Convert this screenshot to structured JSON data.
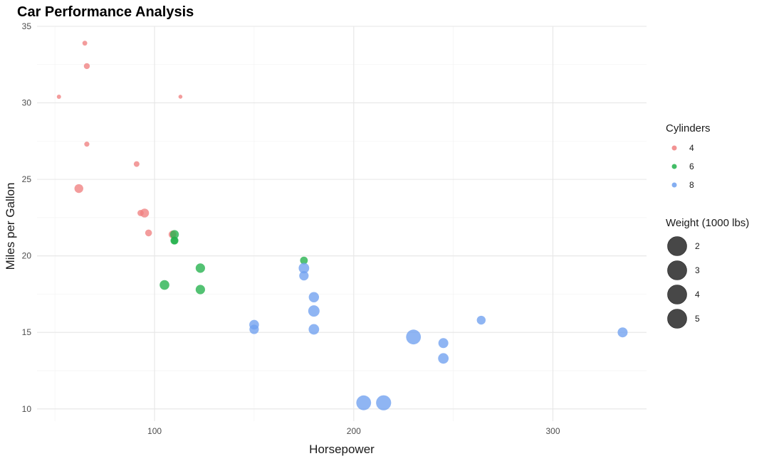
{
  "chart_data": {
    "type": "scatter",
    "title": "Car Performance Analysis",
    "xlabel": "Horsepower",
    "ylabel": "Miles per Gallon",
    "xlim": [
      41,
      347
    ],
    "ylim": [
      9.2,
      35
    ],
    "x_ticks": [
      100,
      200,
      300
    ],
    "y_ticks": [
      10,
      15,
      20,
      25,
      30,
      35
    ],
    "grid": true,
    "legend_position": "right",
    "colors": {
      "4": "#f08080",
      "6": "#22b14c",
      "8": "#6fa0ef"
    },
    "color_legend": {
      "title": "Cylinders",
      "entries": [
        {
          "label": "4",
          "color": "#f08080"
        },
        {
          "label": "6",
          "color": "#22b14c"
        },
        {
          "label": "8",
          "color": "#6fa0ef"
        }
      ]
    },
    "size_legend": {
      "title": "Weight (1000 lbs)",
      "entries": [
        "2",
        "3",
        "4",
        "5"
      ],
      "color": "#333333"
    },
    "series": [
      {
        "name": "4",
        "points": [
          {
            "hp": 65,
            "mpg": 33.9,
            "wt": 1.8
          },
          {
            "hp": 66,
            "mpg": 32.4,
            "wt": 2.2
          },
          {
            "hp": 52,
            "mpg": 30.4,
            "wt": 1.6
          },
          {
            "hp": 113,
            "mpg": 30.4,
            "wt": 1.5
          },
          {
            "hp": 66,
            "mpg": 27.3,
            "wt": 1.9
          },
          {
            "hp": 91,
            "mpg": 26.0,
            "wt": 2.1
          },
          {
            "hp": 62,
            "mpg": 24.4,
            "wt": 3.2
          },
          {
            "hp": 93,
            "mpg": 22.8,
            "wt": 2.3
          },
          {
            "hp": 95,
            "mpg": 22.8,
            "wt": 3.2
          },
          {
            "hp": 97,
            "mpg": 21.5,
            "wt": 2.5
          },
          {
            "hp": 109,
            "mpg": 21.4,
            "wt": 2.8
          }
        ]
      },
      {
        "name": "6",
        "points": [
          {
            "hp": 110,
            "mpg": 21.4,
            "wt": 3.2
          },
          {
            "hp": 110,
            "mpg": 21.0,
            "wt": 2.6
          },
          {
            "hp": 110,
            "mpg": 21.0,
            "wt": 2.9
          },
          {
            "hp": 105,
            "mpg": 18.1,
            "wt": 3.5
          },
          {
            "hp": 123,
            "mpg": 19.2,
            "wt": 3.4
          },
          {
            "hp": 123,
            "mpg": 17.8,
            "wt": 3.4
          },
          {
            "hp": 175,
            "mpg": 19.7,
            "wt": 2.8
          }
        ]
      },
      {
        "name": "8",
        "points": [
          {
            "hp": 175,
            "mpg": 19.2,
            "wt": 3.8
          },
          {
            "hp": 175,
            "mpg": 18.7,
            "wt": 3.4
          },
          {
            "hp": 180,
            "mpg": 17.3,
            "wt": 3.7
          },
          {
            "hp": 180,
            "mpg": 16.4,
            "wt": 4.1
          },
          {
            "hp": 180,
            "mpg": 15.2,
            "wt": 3.8
          },
          {
            "hp": 150,
            "mpg": 15.5,
            "wt": 3.5
          },
          {
            "hp": 150,
            "mpg": 15.2,
            "wt": 3.4
          },
          {
            "hp": 230,
            "mpg": 14.7,
            "wt": 5.3
          },
          {
            "hp": 245,
            "mpg": 14.3,
            "wt": 3.6
          },
          {
            "hp": 245,
            "mpg": 13.3,
            "wt": 3.8
          },
          {
            "hp": 264,
            "mpg": 15.8,
            "wt": 3.2
          },
          {
            "hp": 335,
            "mpg": 15.0,
            "wt": 3.6
          },
          {
            "hp": 205,
            "mpg": 10.4,
            "wt": 5.3
          },
          {
            "hp": 215,
            "mpg": 10.4,
            "wt": 5.4
          }
        ]
      }
    ]
  }
}
